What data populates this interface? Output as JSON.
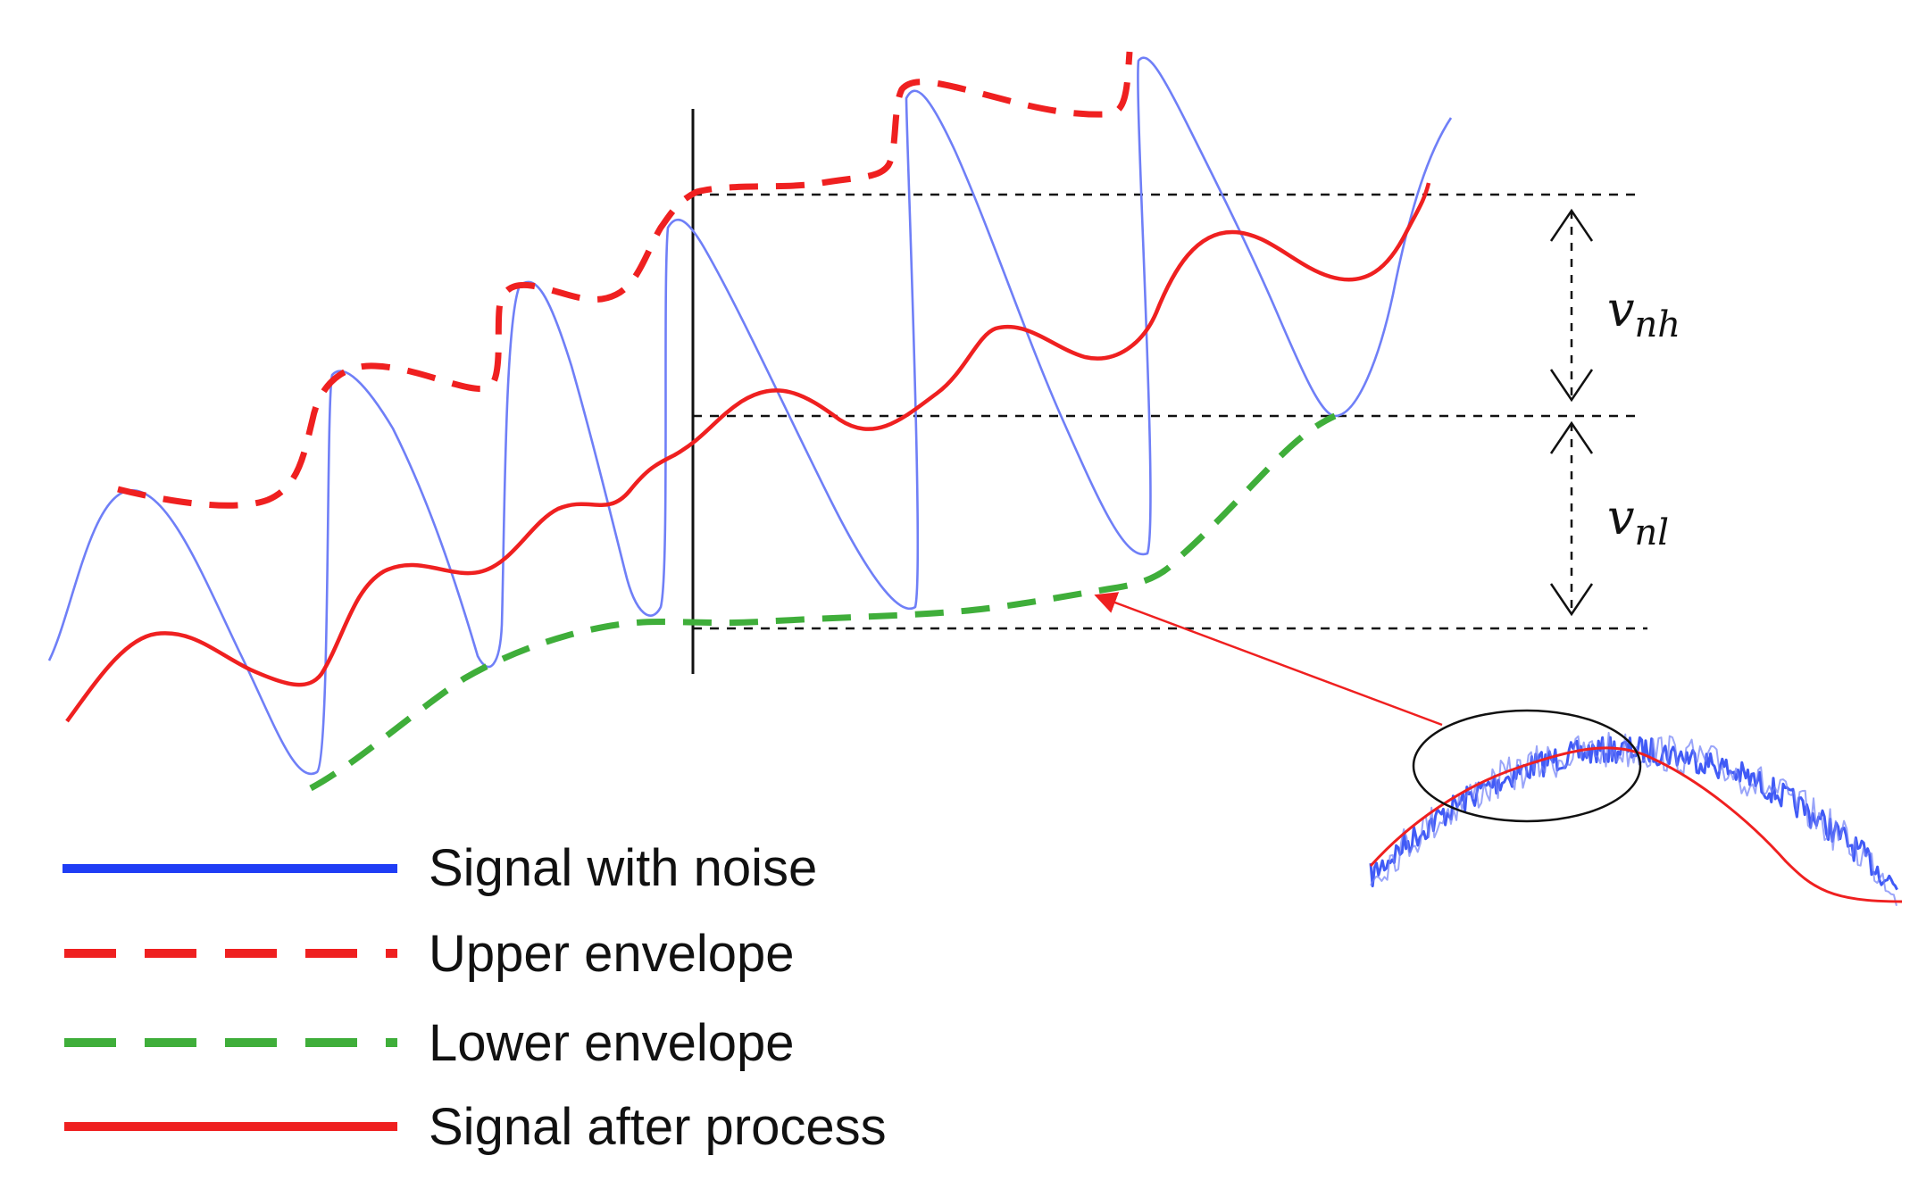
{
  "legend": {
    "items": [
      {
        "label": "Signal with noise",
        "color": "#1f3df5",
        "style": "solid"
      },
      {
        "label": "Upper envelope",
        "color": "#ef2020",
        "style": "dashed"
      },
      {
        "label": "Lower envelope",
        "color": "#3fae3a",
        "style": "dashed"
      },
      {
        "label": "Signal after process",
        "color": "#ef2020",
        "style": "solid"
      }
    ]
  },
  "annotations": {
    "vnh": {
      "base": "v",
      "sub": "nh"
    },
    "vnl": {
      "base": "v",
      "sub": "nl"
    }
  },
  "colors": {
    "signal_noise": "#6f7ff7",
    "signal_noise_strong": "#1f3df5",
    "upper_envelope": "#ef2020",
    "lower_envelope": "#3fae3a",
    "processed": "#ef2020",
    "guide": "#111111"
  }
}
